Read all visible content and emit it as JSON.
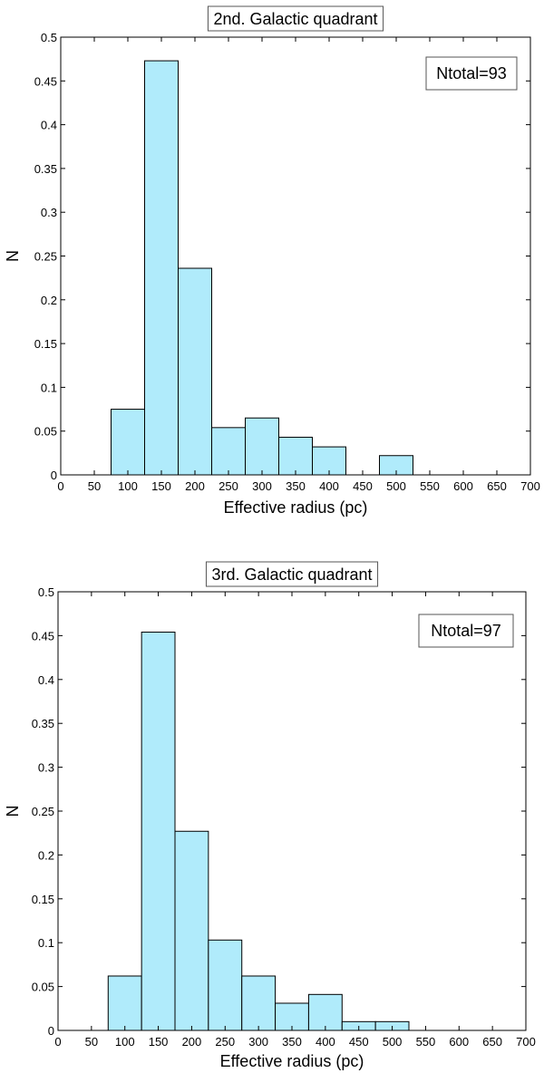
{
  "chart_data": [
    {
      "type": "bar",
      "title": "2nd. Galactic quadrant",
      "xlabel": "Effective radius (pc)",
      "ylabel": "N",
      "xlim": [
        0,
        700
      ],
      "ylim": [
        0,
        0.5
      ],
      "xticks": [
        0,
        50,
        100,
        150,
        200,
        250,
        300,
        350,
        400,
        450,
        500,
        550,
        600,
        650,
        700
      ],
      "yticks": [
        0,
        0.05,
        0.1,
        0.15,
        0.2,
        0.25,
        0.3,
        0.35,
        0.4,
        0.45,
        0.5
      ],
      "bin_width": 50,
      "bin_centers": [
        100,
        150,
        200,
        250,
        300,
        350,
        400,
        500
      ],
      "values": [
        0.075,
        0.473,
        0.236,
        0.054,
        0.065,
        0.043,
        0.032,
        0.022
      ],
      "annotation": "Ntotal=93",
      "bar_color": "#b0ebfb",
      "grid": false
    },
    {
      "type": "bar",
      "title": "3rd. Galactic quadrant",
      "xlabel": "Effective radius (pc)",
      "ylabel": "N",
      "xlim": [
        0,
        700
      ],
      "ylim": [
        0,
        0.5
      ],
      "xticks": [
        0,
        50,
        100,
        150,
        200,
        250,
        300,
        350,
        400,
        450,
        500,
        550,
        600,
        650,
        700
      ],
      "yticks": [
        0,
        0.05,
        0.1,
        0.15,
        0.2,
        0.25,
        0.3,
        0.35,
        0.4,
        0.45,
        0.5
      ],
      "bin_width": 50,
      "bin_centers": [
        100,
        150,
        200,
        250,
        300,
        350,
        400,
        450,
        500
      ],
      "values": [
        0.062,
        0.454,
        0.227,
        0.103,
        0.062,
        0.031,
        0.041,
        0.01,
        0.01
      ],
      "annotation": "Ntotal=97",
      "bar_color": "#b0ebfb",
      "grid": false
    }
  ]
}
